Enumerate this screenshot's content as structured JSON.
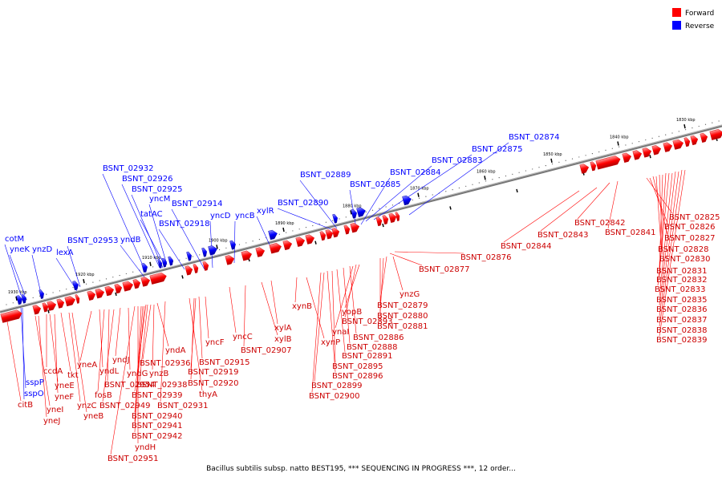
{
  "legend": [
    {
      "label": "Forward",
      "color": "#ff0000"
    },
    {
      "label": "Reverse",
      "color": "#0000ff"
    }
  ],
  "caption": "Bacillus subtilis subsp. natto BEST195, *** SEQUENCING IN PROGRESS ***, 12 order...",
  "colors": {
    "forward": "#ff0000",
    "forward_dark": "#cc0000",
    "reverse": "#0000ff",
    "reverse_dark": "#0000aa",
    "axis": "#777777"
  },
  "tick_unit": "kbp",
  "ticks": [
    1830,
    1840,
    1850,
    1860,
    1870,
    1880,
    1890,
    1900,
    1910,
    1920,
    1930
  ],
  "reverse_genes": [
    {
      "label": "cotM"
    },
    {
      "label": "yneK"
    },
    {
      "label": "ynzD"
    },
    {
      "label": "lexA"
    },
    {
      "label": "BSNT_02953"
    },
    {
      "label": "yndB"
    },
    {
      "label": "BSNT_02932"
    },
    {
      "label": "BSNT_02926"
    },
    {
      "label": "BSNT_02925"
    },
    {
      "label": "yncM"
    },
    {
      "label": "tatAC"
    },
    {
      "label": "BSNT_02918"
    },
    {
      "label": "BSNT_02914"
    },
    {
      "label": "yncD"
    },
    {
      "label": "yncB"
    },
    {
      "label": "xylR"
    },
    {
      "label": "BSNT_02890"
    },
    {
      "label": "BSNT_02889"
    },
    {
      "label": "BSNT_02885"
    },
    {
      "label": "BSNT_02884"
    },
    {
      "label": "BSNT_02883"
    },
    {
      "label": "BSNT_02875"
    },
    {
      "label": "BSNT_02874"
    },
    {
      "label": "sspP"
    },
    {
      "label": "sspO"
    }
  ],
  "forward_genes": [
    {
      "label": "citB"
    },
    {
      "label": "yneI"
    },
    {
      "label": "yneJ"
    },
    {
      "label": "ccdA"
    },
    {
      "label": "yneE"
    },
    {
      "label": "yneF"
    },
    {
      "label": "tkt"
    },
    {
      "label": "ynzC"
    },
    {
      "label": "yneB"
    },
    {
      "label": "yneA"
    },
    {
      "label": "yndL"
    },
    {
      "label": "fosB"
    },
    {
      "label": "BSNT_02954"
    },
    {
      "label": "BSNT_02949"
    },
    {
      "label": "yndJ"
    },
    {
      "label": "yndG"
    },
    {
      "label": "BSNT_02951"
    },
    {
      "label": "yndH"
    },
    {
      "label": "BSNT_02942"
    },
    {
      "label": "BSNT_02941"
    },
    {
      "label": "BSNT_02940"
    },
    {
      "label": "BSNT_02939"
    },
    {
      "label": "BSNT_02938"
    },
    {
      "label": "BSNT_02936"
    },
    {
      "label": "ynzB"
    },
    {
      "label": "yndA"
    },
    {
      "label": "BSNT_02931"
    },
    {
      "label": "thyA"
    },
    {
      "label": "BSNT_02920"
    },
    {
      "label": "BSNT_02919"
    },
    {
      "label": "BSNT_02915"
    },
    {
      "label": "yncF"
    },
    {
      "label": "yncC"
    },
    {
      "label": "BSNT_02907"
    },
    {
      "label": "xylB"
    },
    {
      "label": "xylA"
    },
    {
      "label": "xynB"
    },
    {
      "label": "xynP"
    },
    {
      "label": "BSNT_02900"
    },
    {
      "label": "BSNT_02899"
    },
    {
      "label": "BSNT_02896"
    },
    {
      "label": "BSNT_02895"
    },
    {
      "label": "BSNT_02891"
    },
    {
      "label": "BSNT_02888"
    },
    {
      "label": "BSNT_02886"
    },
    {
      "label": "ynaI"
    },
    {
      "label": "BSNT_02893"
    },
    {
      "label": "yopB"
    },
    {
      "label": "BSNT_02881"
    },
    {
      "label": "BSNT_02880"
    },
    {
      "label": "BSNT_02879"
    },
    {
      "label": "ynzG"
    },
    {
      "label": "BSNT_02877"
    },
    {
      "label": "BSNT_02876"
    },
    {
      "label": "BSNT_02844"
    },
    {
      "label": "BSNT_02843"
    },
    {
      "label": "BSNT_02842"
    },
    {
      "label": "BSNT_02841"
    },
    {
      "label": "BSNT_02825"
    },
    {
      "label": "BSNT_02826"
    },
    {
      "label": "BSNT_02827"
    },
    {
      "label": "BSNT_02828"
    },
    {
      "label": "BSNT_02830"
    },
    {
      "label": "BSNT_02831"
    },
    {
      "label": "BSNT_02832"
    },
    {
      "label": "BSNT_02833"
    },
    {
      "label": "BSNT_02835"
    },
    {
      "label": "BSNT_02836"
    },
    {
      "label": "BSNT_02837"
    },
    {
      "label": "BSNT_02838"
    },
    {
      "label": "BSNT_02839"
    }
  ]
}
